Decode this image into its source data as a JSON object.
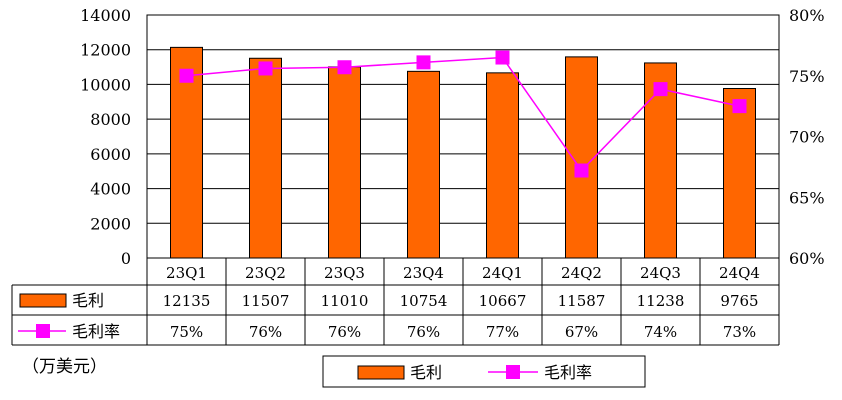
{
  "chart_data": {
    "type": "bar",
    "categories": [
      "23Q1",
      "23Q2",
      "23Q3",
      "23Q4",
      "24Q1",
      "24Q2",
      "24Q3",
      "24Q4"
    ],
    "series": [
      {
        "name": "毛利",
        "type": "bar",
        "axis": "left",
        "color": "#FF6600",
        "values": [
          12135,
          11507,
          11010,
          10754,
          10667,
          11587,
          11238,
          9765
        ],
        "labels": [
          "12135",
          "11507",
          "11010",
          "10754",
          "10667",
          "11587",
          "11238",
          "9765"
        ]
      },
      {
        "name": "毛利率",
        "type": "line",
        "axis": "right",
        "color": "#FF00FF",
        "values": [
          75.0,
          75.6,
          75.7,
          76.1,
          76.5,
          67.2,
          73.9,
          72.5
        ],
        "labels": [
          "75%",
          "76%",
          "76%",
          "76%",
          "77%",
          "67%",
          "74%",
          "73%"
        ]
      }
    ],
    "y_left": {
      "ylim": [
        0,
        14000
      ],
      "ticks": [
        "0",
        "2000",
        "4000",
        "6000",
        "8000",
        "10000",
        "12000",
        "14000"
      ]
    },
    "y_right": {
      "ylim": [
        60,
        80
      ],
      "ticks": [
        "60%",
        "65%",
        "70%",
        "75%",
        "80%"
      ]
    },
    "unit_label": "（万美元）",
    "grid": true,
    "legend_position": "bottom",
    "data_table": true
  }
}
